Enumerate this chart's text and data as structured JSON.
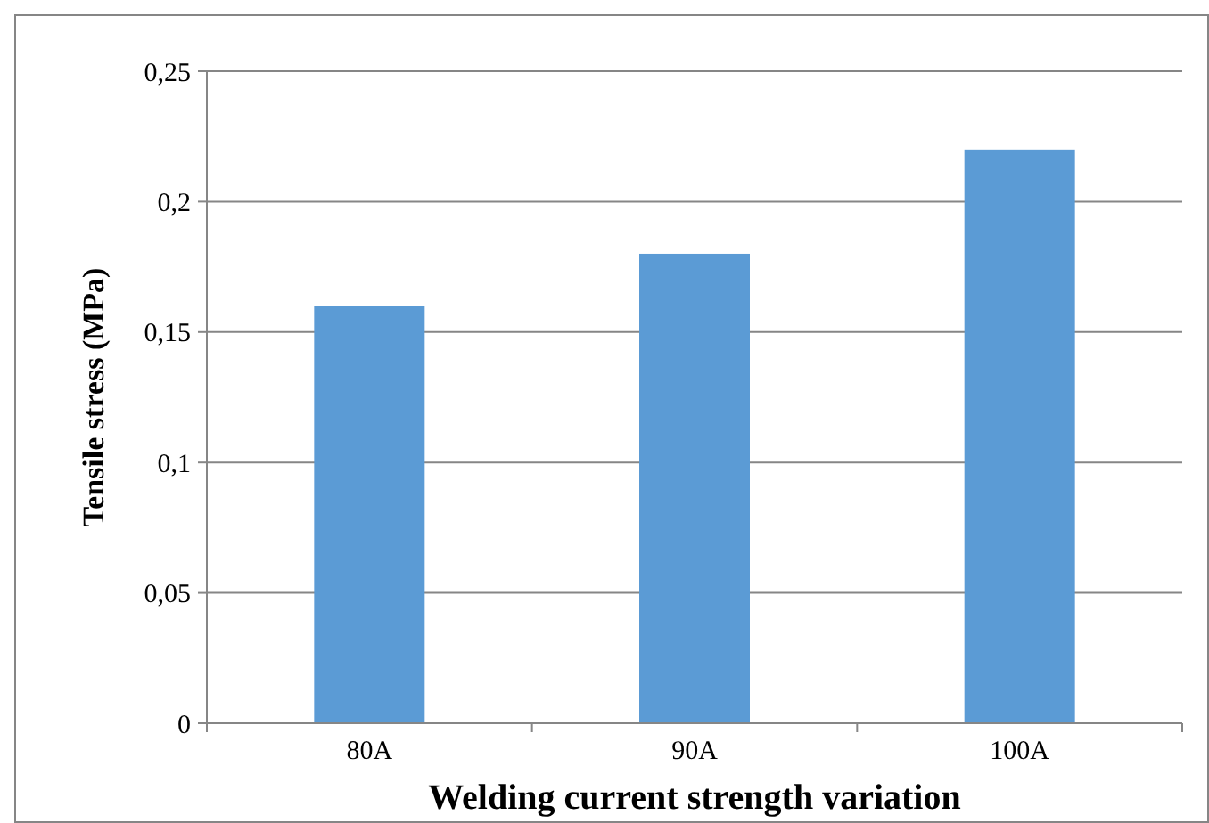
{
  "chart_data": {
    "type": "bar",
    "xlabel": "Welding current strength variation",
    "ylabel": "Tensile stress (MPa)",
    "categories": [
      "80A",
      "90A",
      "100A"
    ],
    "values": [
      0.16,
      0.18,
      0.22
    ],
    "color": "#5b9bd5",
    "ylim": [
      0,
      0.25
    ],
    "yticks": [
      0,
      {
        "value": 0.05,
        "label": "0,05"
      },
      {
        "value": 0.1,
        "label": "0,1"
      },
      {
        "value": 0.15,
        "label": "0,15"
      },
      {
        "value": 0.2,
        "label": "0,2"
      },
      {
        "value": 0.25,
        "label": "0,25"
      }
    ],
    "grid": "y"
  }
}
